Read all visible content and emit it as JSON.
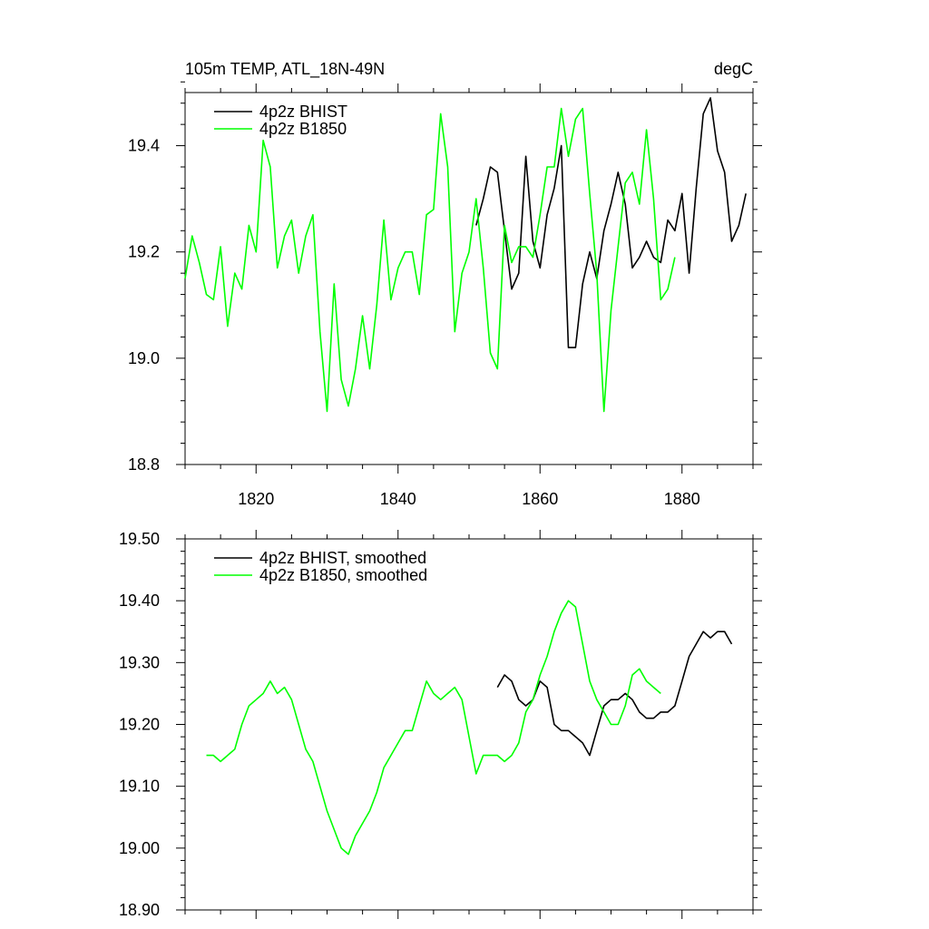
{
  "header": {
    "left_title": "105m TEMP, ATL_18N-49N",
    "right_title": "degC"
  },
  "colors": {
    "bhist": "#000000",
    "b1850": "#00ff00"
  },
  "chart_data": [
    {
      "type": "line",
      "xlim": [
        1810,
        1890
      ],
      "ylim": [
        18.8,
        19.5
      ],
      "x_ticks": [
        1820,
        1840,
        1860,
        1880
      ],
      "x_tick_labels": [
        "1820",
        "1840",
        "1860",
        "1880"
      ],
      "y_ticks": [
        18.8,
        19.0,
        19.2,
        19.4
      ],
      "y_tick_labels": [
        "18.8",
        "19.0",
        "19.2",
        "19.4"
      ],
      "grid": false,
      "legend_position": "top-left",
      "series": [
        {
          "name": "4p2z BHIST",
          "color": "#000000",
          "x": [
            1851,
            1852,
            1853,
            1854,
            1855,
            1856,
            1857,
            1858,
            1859,
            1860,
            1861,
            1862,
            1863,
            1864,
            1865,
            1866,
            1867,
            1868,
            1869,
            1870,
            1871,
            1872,
            1873,
            1874,
            1875,
            1876,
            1877,
            1878,
            1879,
            1880,
            1881,
            1882,
            1883,
            1884,
            1885,
            1886,
            1887,
            1888,
            1889
          ],
          "y": [
            19.25,
            19.3,
            19.36,
            19.35,
            19.24,
            19.13,
            19.16,
            19.38,
            19.22,
            19.17,
            19.27,
            19.32,
            19.4,
            19.02,
            19.02,
            19.14,
            19.2,
            19.15,
            19.24,
            19.29,
            19.35,
            19.29,
            19.17,
            19.19,
            19.22,
            19.19,
            19.18,
            19.26,
            19.24,
            19.31,
            19.16,
            19.32,
            19.46,
            19.49,
            19.39,
            19.35,
            19.22,
            19.25,
            19.31
          ]
        },
        {
          "name": "4p2z B1850",
          "color": "#00ff00",
          "x": [
            1810,
            1811,
            1812,
            1813,
            1814,
            1815,
            1816,
            1817,
            1818,
            1819,
            1820,
            1821,
            1822,
            1823,
            1824,
            1825,
            1826,
            1827,
            1828,
            1829,
            1830,
            1831,
            1832,
            1833,
            1834,
            1835,
            1836,
            1837,
            1838,
            1839,
            1840,
            1841,
            1842,
            1843,
            1844,
            1845,
            1846,
            1847,
            1848,
            1849,
            1850,
            1851,
            1852,
            1853,
            1854,
            1855,
            1856,
            1857,
            1858,
            1859,
            1860,
            1861,
            1862,
            1863,
            1864,
            1865,
            1866,
            1867,
            1868,
            1869,
            1870,
            1871,
            1872,
            1873,
            1874,
            1875,
            1876,
            1877,
            1878,
            1879
          ],
          "y": [
            19.15,
            19.23,
            19.18,
            19.12,
            19.11,
            19.21,
            19.06,
            19.16,
            19.13,
            19.25,
            19.2,
            19.41,
            19.36,
            19.17,
            19.23,
            19.26,
            19.16,
            19.23,
            19.27,
            19.05,
            18.9,
            19.14,
            18.96,
            18.91,
            18.98,
            19.08,
            18.98,
            19.1,
            19.26,
            19.11,
            19.17,
            19.2,
            19.2,
            19.12,
            19.27,
            19.28,
            19.46,
            19.36,
            19.05,
            19.16,
            19.2,
            19.3,
            19.17,
            19.01,
            18.98,
            19.25,
            19.18,
            19.21,
            19.21,
            19.19,
            19.27,
            19.36,
            19.36,
            19.47,
            19.38,
            19.45,
            19.47,
            19.31,
            19.16,
            18.9,
            19.09,
            19.21,
            19.33,
            19.35,
            19.29,
            19.43,
            19.3,
            19.11,
            19.13,
            19.19
          ]
        }
      ]
    },
    {
      "type": "line",
      "xlim": [
        1810,
        1890
      ],
      "ylim": [
        18.9,
        19.5
      ],
      "x_ticks": [
        1820,
        1840,
        1860,
        1880
      ],
      "y_ticks": [
        18.9,
        19.0,
        19.1,
        19.2,
        19.3,
        19.4,
        19.5
      ],
      "y_tick_labels": [
        "18.90",
        "19.00",
        "19.10",
        "19.20",
        "19.30",
        "19.40",
        "19.50"
      ],
      "grid": false,
      "legend_position": "top-left",
      "series": [
        {
          "name": "4p2z BHIST, smoothed",
          "color": "#000000",
          "x": [
            1854,
            1855,
            1856,
            1857,
            1858,
            1859,
            1860,
            1861,
            1862,
            1863,
            1864,
            1865,
            1866,
            1867,
            1868,
            1869,
            1870,
            1871,
            1872,
            1873,
            1874,
            1875,
            1876,
            1877,
            1878,
            1879,
            1880,
            1881,
            1882,
            1883,
            1884,
            1885,
            1886,
            1887
          ],
          "y": [
            19.26,
            19.28,
            19.27,
            19.24,
            19.23,
            19.24,
            19.27,
            19.26,
            19.2,
            19.19,
            19.19,
            19.18,
            19.17,
            19.15,
            19.19,
            19.23,
            19.24,
            19.24,
            19.25,
            19.24,
            19.22,
            19.21,
            19.21,
            19.22,
            19.22,
            19.23,
            19.27,
            19.31,
            19.33,
            19.35,
            19.34,
            19.35,
            19.35,
            19.33
          ]
        },
        {
          "name": "4p2z B1850, smoothed",
          "color": "#00ff00",
          "x": [
            1813,
            1814,
            1815,
            1816,
            1817,
            1818,
            1819,
            1820,
            1821,
            1822,
            1823,
            1824,
            1825,
            1826,
            1827,
            1828,
            1829,
            1830,
            1831,
            1832,
            1833,
            1834,
            1835,
            1836,
            1837,
            1838,
            1839,
            1840,
            1841,
            1842,
            1843,
            1844,
            1845,
            1846,
            1847,
            1848,
            1849,
            1850,
            1851,
            1852,
            1853,
            1854,
            1855,
            1856,
            1857,
            1858,
            1859,
            1860,
            1861,
            1862,
            1863,
            1864,
            1865,
            1866,
            1867,
            1868,
            1869,
            1870,
            1871,
            1872,
            1873,
            1874,
            1875,
            1876,
            1877
          ],
          "y": [
            19.15,
            19.15,
            19.14,
            19.15,
            19.16,
            19.2,
            19.23,
            19.24,
            19.25,
            19.27,
            19.25,
            19.26,
            19.24,
            19.2,
            19.16,
            19.14,
            19.1,
            19.06,
            19.03,
            19.0,
            18.99,
            19.02,
            19.04,
            19.06,
            19.09,
            19.13,
            19.15,
            19.17,
            19.19,
            19.19,
            19.23,
            19.27,
            19.25,
            19.24,
            19.25,
            19.26,
            19.24,
            19.18,
            19.12,
            19.15,
            19.15,
            19.15,
            19.14,
            19.15,
            19.17,
            19.22,
            19.24,
            19.28,
            19.31,
            19.35,
            19.38,
            19.4,
            19.39,
            19.33,
            19.27,
            19.24,
            19.22,
            19.2,
            19.2,
            19.23,
            19.28,
            19.29,
            19.27,
            19.26,
            19.25
          ]
        }
      ]
    }
  ]
}
